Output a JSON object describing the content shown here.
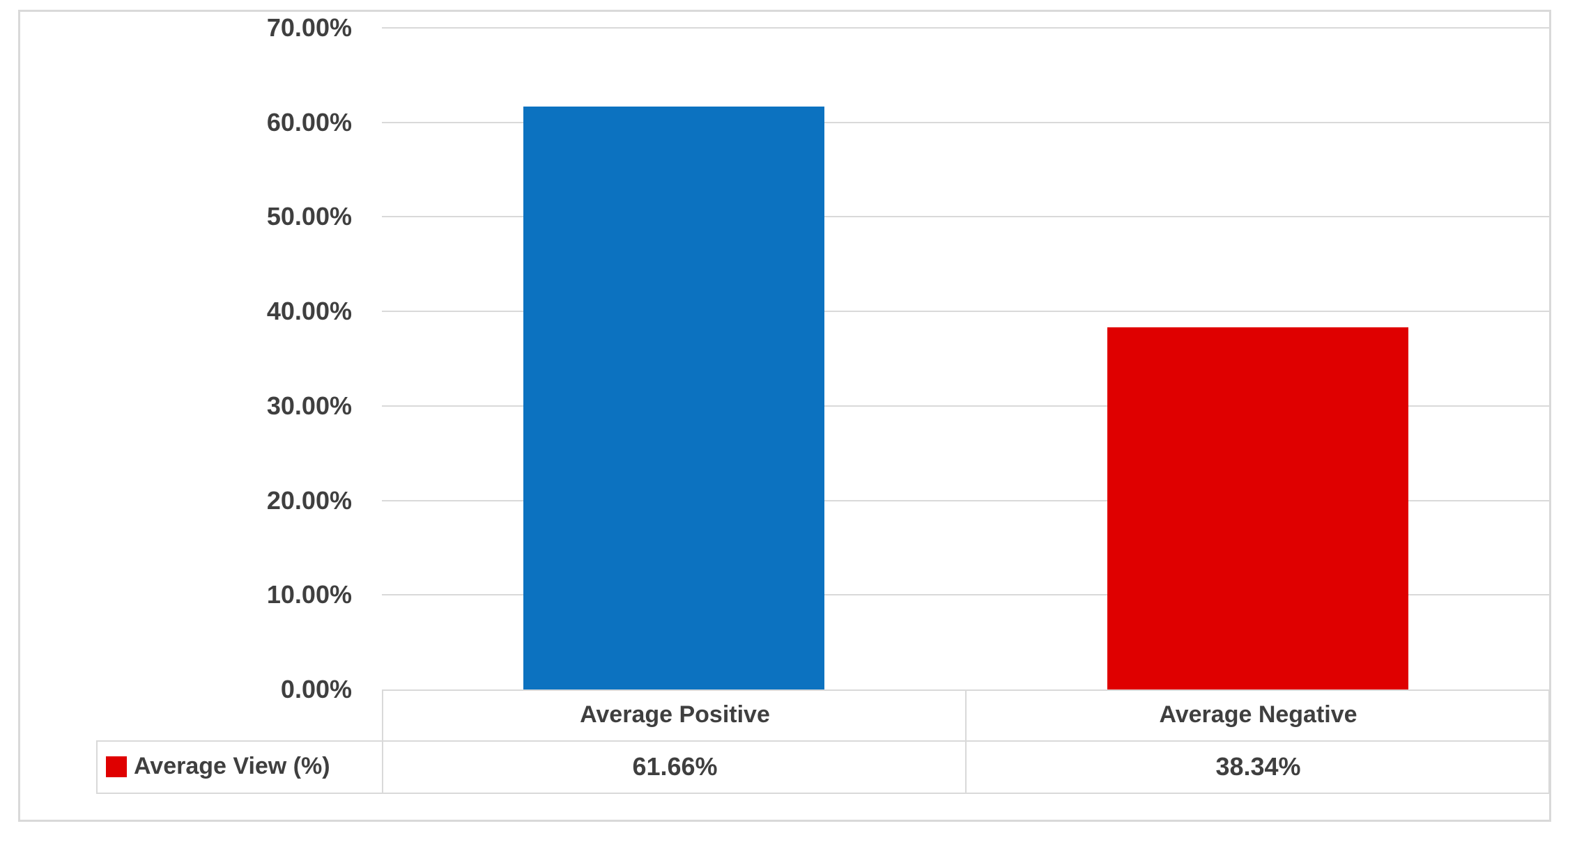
{
  "chart_data": {
    "type": "bar",
    "title": "",
    "xlabel": "",
    "ylabel": "",
    "categories": [
      "Average Positive",
      "Average Negative"
    ],
    "series": [
      {
        "name": "Average View (%)",
        "values": [
          61.66,
          38.34
        ],
        "colors": [
          "#0c72c0",
          "#df0000"
        ]
      }
    ],
    "value_labels": [
      "61.66%",
      "38.34%"
    ],
    "ylim": [
      0,
      70
    ],
    "ytick_step": 10,
    "ytick_labels": [
      "0.00%",
      "10.00%",
      "20.00%",
      "30.00%",
      "40.00%",
      "50.00%",
      "60.00%",
      "70.00%"
    ],
    "grid": true,
    "legend": {
      "label": "Average View (%)",
      "marker_color": "#df0000",
      "position": "data-table-left"
    },
    "colors": {
      "bar_positive": "#0c72c0",
      "bar_negative": "#df0000",
      "gridline": "#d9d9d9",
      "border": "#d9d9d9",
      "text": "#3f3f3f"
    }
  }
}
